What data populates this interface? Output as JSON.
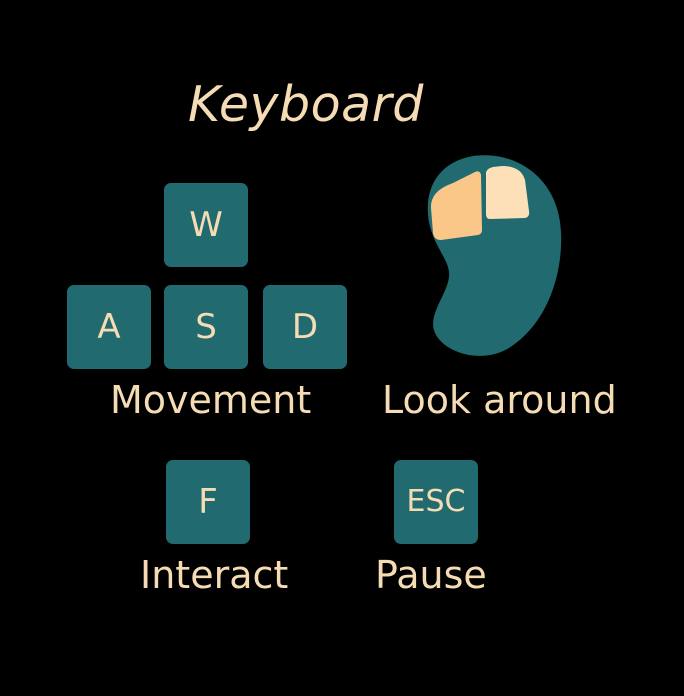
{
  "title": "Keyboard",
  "keys": {
    "w": "W",
    "a": "A",
    "s": "S",
    "d": "D",
    "f": "F",
    "esc": "ESC"
  },
  "labels": {
    "movement": "Movement",
    "look_around": "Look around",
    "interact": "Interact",
    "pause": "Pause"
  },
  "colors": {
    "background": "#000000",
    "key": "#216b70",
    "text": "#f6dcb5",
    "mouse_body": "#216b70",
    "mouse_left_button": "#fbc789",
    "mouse_right_button": "#fde0b8"
  },
  "icons": {
    "mouse": "mouse-icon"
  }
}
